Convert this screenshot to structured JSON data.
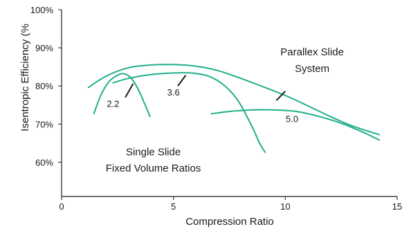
{
  "chart_data": {
    "type": "line",
    "title": "",
    "xlabel": "Compression Ratio",
    "ylabel": "Isentropic Efficiency (%",
    "xlim": [
      0,
      15
    ],
    "ylim": [
      51,
      100
    ],
    "x_ticks": [
      "0",
      "5",
      "10",
      "15"
    ],
    "y_ticks": [
      {
        "value": 60,
        "label": "60%"
      },
      {
        "value": 70,
        "label": "70%"
      },
      {
        "value": 80,
        "label": "80%"
      },
      {
        "value": 90,
        "label": "90%"
      },
      {
        "value": 100,
        "label": "100%"
      }
    ],
    "grid": false,
    "line_color": "#1fae8a",
    "series": [
      {
        "name": "2.2",
        "points": [
          [
            1.45,
            72.8
          ],
          [
            1.75,
            77.5
          ],
          [
            2.1,
            81.0
          ],
          [
            2.5,
            82.8
          ],
          [
            2.8,
            83.2
          ],
          [
            3.1,
            82.1
          ],
          [
            3.4,
            79.4
          ],
          [
            3.7,
            75.5
          ],
          [
            3.95,
            72.0
          ]
        ]
      },
      {
        "name": "3.6",
        "points": [
          [
            2.3,
            80.8
          ],
          [
            3.0,
            82.0
          ],
          [
            4.0,
            83.0
          ],
          [
            5.0,
            83.4
          ],
          [
            5.8,
            83.4
          ],
          [
            6.6,
            82.5
          ],
          [
            7.3,
            80.0
          ],
          [
            7.9,
            76.0
          ],
          [
            8.5,
            69.5
          ],
          [
            8.85,
            65.0
          ],
          [
            9.1,
            62.6
          ]
        ]
      },
      {
        "name": "5.0",
        "points": [
          [
            6.7,
            72.7
          ],
          [
            7.5,
            73.3
          ],
          [
            8.5,
            73.7
          ],
          [
            9.5,
            73.7
          ],
          [
            10.5,
            73.3
          ],
          [
            11.5,
            72.0
          ],
          [
            12.5,
            70.2
          ],
          [
            13.5,
            67.8
          ],
          [
            14.2,
            65.8
          ]
        ]
      },
      {
        "name": "Parallex Slide System",
        "points": [
          [
            1.2,
            79.6
          ],
          [
            2.0,
            82.6
          ],
          [
            3.0,
            84.8
          ],
          [
            4.0,
            85.5
          ],
          [
            5.0,
            85.6
          ],
          [
            6.0,
            85.2
          ],
          [
            7.0,
            84.0
          ],
          [
            8.0,
            82.0
          ],
          [
            9.0,
            79.8
          ],
          [
            10.0,
            77.5
          ],
          [
            11.0,
            74.8
          ],
          [
            12.0,
            72.0
          ],
          [
            13.0,
            69.5
          ],
          [
            14.2,
            67.2
          ]
        ]
      }
    ],
    "annotations": [
      {
        "id": "label-2-2",
        "text": "2.2",
        "x": 2.3,
        "y": 74.5,
        "leader": [
          [
            2.85,
            77.0
          ],
          [
            3.2,
            80.6
          ]
        ]
      },
      {
        "id": "label-3-6",
        "text": "3.6",
        "x": 5.0,
        "y": 77.5,
        "leader": [
          [
            5.2,
            80.0
          ],
          [
            5.55,
            82.8
          ]
        ]
      },
      {
        "id": "label-5-0",
        "text": "5.0",
        "x": 10.3,
        "y": 70.5,
        "leader": null
      },
      {
        "id": "label-parallex-1",
        "text": "Parallex Slide",
        "x": 11.2,
        "y": 88.0,
        "leader": null
      },
      {
        "id": "label-parallex-2",
        "text": "System",
        "x": 11.2,
        "y": 83.7,
        "leader": null
      },
      {
        "id": "label-single-1",
        "text": "Single Slide",
        "x": 4.1,
        "y": 61.8,
        "leader": null
      },
      {
        "id": "label-single-2",
        "text": "Fixed Volume Ratios",
        "x": 4.1,
        "y": 57.5,
        "leader": null
      }
    ],
    "parallex_leader": [
      [
        9.6,
        76.2
      ],
      [
        10.0,
        78.6
      ]
    ]
  }
}
